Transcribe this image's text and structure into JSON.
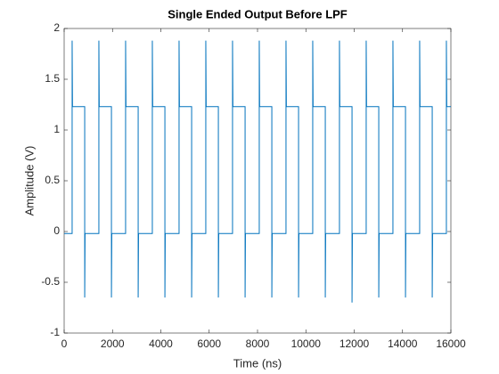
{
  "chart_data": {
    "type": "line",
    "title": "Single Ended Output Before LPF",
    "xlabel": "Time (ns)",
    "ylabel": "Amplitude (V)",
    "xlim": [
      0,
      16000
    ],
    "xticks": [
      0,
      2000,
      4000,
      6000,
      8000,
      10000,
      12000,
      14000,
      16000
    ],
    "ylim": [
      -1,
      2
    ],
    "yticks": [
      -1,
      -0.5,
      0,
      0.5,
      1,
      1.5,
      2
    ],
    "grid": false,
    "series": [
      {
        "color": "#0072bd",
        "x": [
          0,
          330,
          330,
          345,
          850,
          850,
          865,
          1436,
          1436,
          1451,
          1956,
          1956,
          1971,
          2542,
          2542,
          2557,
          3062,
          3062,
          3077,
          3648,
          3648,
          3663,
          4168,
          4168,
          4183,
          4754,
          4754,
          4769,
          5274,
          5274,
          5289,
          5860,
          5860,
          5875,
          6380,
          6380,
          6395,
          6966,
          6966,
          6981,
          7486,
          7486,
          7501,
          8072,
          8072,
          8087,
          8592,
          8592,
          8607,
          9178,
          9178,
          9193,
          9698,
          9698,
          9713,
          10284,
          10284,
          10299,
          10804,
          10804,
          10819,
          11390,
          11390,
          11405,
          11910,
          11910,
          11925,
          12496,
          12496,
          12511,
          13016,
          13016,
          13031,
          13602,
          13602,
          13617,
          14122,
          14122,
          14137,
          14708,
          14708,
          14723,
          15228,
          15228,
          15243,
          15814,
          15814,
          15829,
          16000
        ],
        "values": [
          -0.02,
          -0.02,
          1.88,
          1.23,
          1.23,
          -0.65,
          -0.02,
          -0.02,
          1.88,
          1.23,
          1.23,
          -0.65,
          -0.02,
          -0.02,
          1.88,
          1.23,
          1.23,
          -0.65,
          -0.02,
          -0.02,
          1.88,
          1.23,
          1.23,
          -0.65,
          -0.02,
          -0.02,
          1.88,
          1.23,
          1.23,
          -0.65,
          -0.02,
          -0.02,
          1.88,
          1.23,
          1.23,
          -0.65,
          -0.02,
          -0.02,
          1.88,
          1.23,
          1.23,
          -0.65,
          -0.02,
          -0.02,
          1.88,
          1.23,
          1.23,
          -0.65,
          -0.02,
          -0.02,
          1.88,
          1.23,
          1.23,
          -0.65,
          -0.02,
          -0.02,
          1.88,
          1.23,
          1.23,
          -0.65,
          -0.02,
          -0.02,
          1.88,
          1.23,
          1.23,
          -0.7,
          -0.02,
          -0.02,
          1.88,
          1.23,
          1.23,
          -0.65,
          -0.02,
          -0.02,
          1.88,
          1.23,
          1.23,
          -0.65,
          -0.02,
          -0.02,
          1.88,
          1.23,
          1.23,
          -0.65,
          -0.02,
          -0.02,
          1.88,
          1.23,
          1.23
        ]
      }
    ]
  }
}
